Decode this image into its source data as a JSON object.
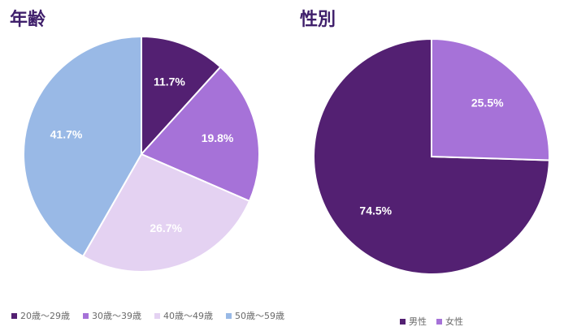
{
  "chart_data": [
    {
      "type": "pie",
      "title": "年齢",
      "categories": [
        "20歳～29歳",
        "30歳～39歳",
        "40歳～49歳",
        "50歳～59歳"
      ],
      "values": [
        11.7,
        19.8,
        26.7,
        41.7
      ],
      "labels": [
        "11.7%",
        "19.8%",
        "26.7%",
        "41.7%"
      ],
      "colors": [
        "#532072",
        "#a672d8",
        "#e4d2f2",
        "#99b9e6"
      ],
      "legend": "bottom"
    },
    {
      "type": "pie",
      "title": "性別",
      "categories": [
        "男性",
        "女性"
      ],
      "values": [
        74.5,
        25.5
      ],
      "labels": [
        "74.5%",
        "25.5%"
      ],
      "colors": [
        "#532072",
        "#a672d8"
      ],
      "legend": "bottom"
    }
  ]
}
